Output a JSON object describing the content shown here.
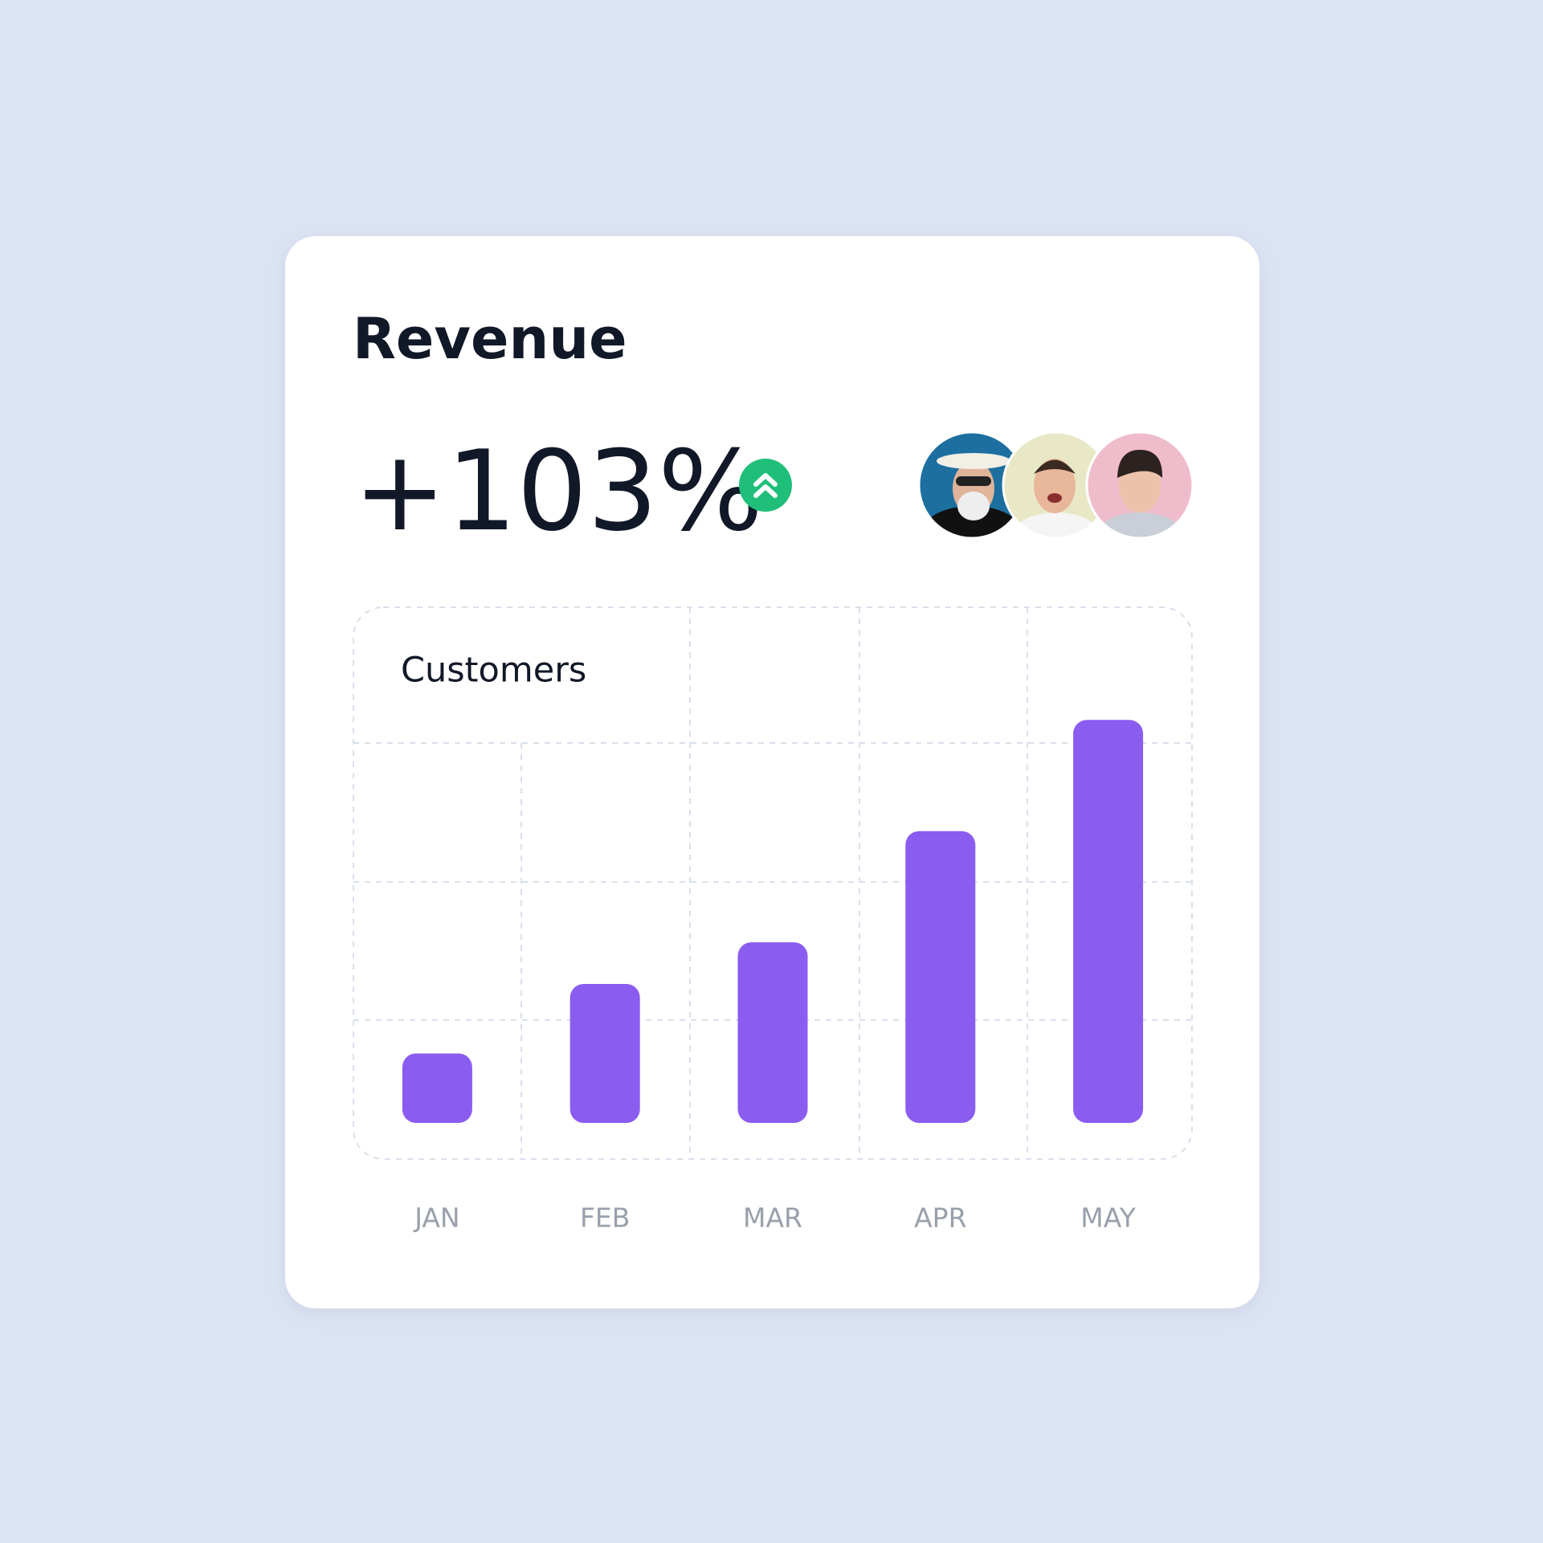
{
  "card": {
    "title": "Revenue",
    "change": "+103%"
  },
  "chart_data": {
    "type": "bar",
    "title": "Customers",
    "categories": [
      "JAN",
      "FEB",
      "MAR",
      "APR",
      "MAY"
    ],
    "values": [
      0.5,
      1,
      1.3,
      2.1,
      2.9
    ],
    "color": "#8b5cf0",
    "ylim": [
      0,
      3
    ]
  }
}
